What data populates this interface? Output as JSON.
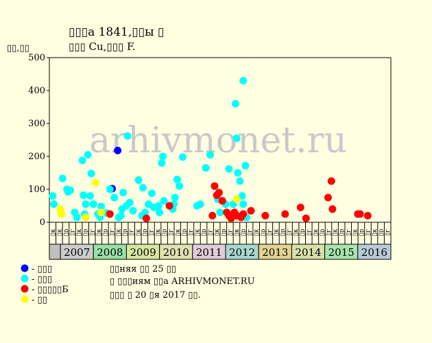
{
  "title": "▯▯▯а 1841,▯▯ы ▯",
  "subtitle": "▯▯▯ Cu,▯▯▯ F.",
  "y_unit": "▯▯,▯▯",
  "watermark": "arhivmonet.ru",
  "legend": [
    {
      "label": "- ▯▯▯",
      "color": "#0000ff"
    },
    {
      "label": "- ▯▯▯",
      "color": "#00ffff"
    },
    {
      "label": "- ▯▯▯▯▯Б",
      "color": "#ff0000"
    },
    {
      "label": "- ▯▯",
      "color": "#ffff00"
    }
  ],
  "notes": [
    "▯▯няя ▯▯ 25 ▯▯",
    "▯ ▯▯▯иям ▯▯а ARHIVMONET.RU",
    "▯▯▯ ▯ 20 ▯я 2017 ▯▯."
  ],
  "chart_data": {
    "type": "scatter",
    "ylim": [
      0,
      500
    ],
    "yticks": [
      "0",
      "100",
      "200",
      "300",
      "400",
      "500"
    ],
    "grid": false,
    "month_labels": [
      "▯к",
      "▯к",
      "▯р",
      "▯г",
      "▯к",
      "▯р",
      "▯г",
      "▯к",
      "▯р",
      "▯г",
      "▯к",
      "▯р",
      "▯г",
      "▯к",
      "▯р",
      "▯г",
      "▯к",
      "▯р",
      "▯г",
      "▯к",
      "▯р",
      "▯г",
      "▯к",
      "▯р",
      "▯г",
      "▯к",
      "▯р",
      "▯г",
      "▯к",
      "▯р",
      "▯г",
      "▯к",
      "▯р",
      "▯г",
      "▯к",
      "▯р",
      "▯г",
      "▯к",
      "▯р",
      "▯г",
      "▯к",
      "▯р",
      "▯г",
      "▯к",
      "▯р",
      "▯г",
      "▯к",
      "▯р",
      "▯г",
      "▯к",
      "▯р",
      "▯г"
    ],
    "years": [
      {
        "label": "",
        "start": 0,
        "end": 1,
        "color": "#c0c0c0"
      },
      {
        "label": "2007",
        "start": 1,
        "end": 4,
        "color": "#cccccc"
      },
      {
        "label": "2008",
        "start": 4,
        "end": 7,
        "color": "#99e0a8"
      },
      {
        "label": "2009",
        "start": 7,
        "end": 10,
        "color": "#d8e6a0"
      },
      {
        "label": "2010",
        "start": 10,
        "end": 13,
        "color": "#e0e2b0"
      },
      {
        "label": "2011",
        "start": 13,
        "end": 16,
        "color": "#e0cbd8"
      },
      {
        "label": "2012",
        "start": 16,
        "end": 19,
        "color": "#a8d8d0"
      },
      {
        "label": "2013",
        "start": 19,
        "end": 22,
        "color": "#e0d490"
      },
      {
        "label": "2014",
        "start": 22,
        "end": 25,
        "color": "#d8e0a8"
      },
      {
        "label": "2015",
        "start": 25,
        "end": 28,
        "color": "#a8e4b0"
      },
      {
        "label": "2016",
        "start": 28,
        "end": 31,
        "color": "#b8ccd8"
      }
    ],
    "series": [
      {
        "name": "- ▯▯▯",
        "color": "#0000ff",
        "points": [
          [
            5.7,
            102
          ],
          [
            6.2,
            218
          ]
        ]
      },
      {
        "name": "- ▯▯▯",
        "color": "#00ffff",
        "points": [
          [
            0.3,
            80
          ],
          [
            0.4,
            55
          ],
          [
            1.2,
            133
          ],
          [
            1.6,
            100
          ],
          [
            1.7,
            92
          ],
          [
            1.9,
            97
          ],
          [
            2.3,
            30
          ],
          [
            2.5,
            15
          ],
          [
            3.0,
            188
          ],
          [
            3.1,
            82
          ],
          [
            3.2,
            25
          ],
          [
            3.3,
            55
          ],
          [
            3.5,
            205
          ],
          [
            3.7,
            80
          ],
          [
            3.8,
            148
          ],
          [
            4.0,
            55
          ],
          [
            4.4,
            25
          ],
          [
            4.6,
            15
          ],
          [
            4.7,
            48
          ],
          [
            5.2,
            28
          ],
          [
            5.5,
            100
          ],
          [
            5.9,
            75
          ],
          [
            6.3,
            15
          ],
          [
            6.5,
            20
          ],
          [
            6.6,
            40
          ],
          [
            6.7,
            90
          ],
          [
            7.0,
            50
          ],
          [
            7.1,
            262
          ],
          [
            7.3,
            60
          ],
          [
            7.6,
            35
          ],
          [
            8.1,
            128
          ],
          [
            8.4,
            20
          ],
          [
            8.5,
            105
          ],
          [
            8.7,
            30
          ],
          [
            9.0,
            55
          ],
          [
            9.3,
            88
          ],
          [
            9.5,
            45
          ],
          [
            9.9,
            50
          ],
          [
            10.0,
            30
          ],
          [
            10.2,
            180
          ],
          [
            10.3,
            200
          ],
          [
            10.4,
            65
          ],
          [
            11.2,
            40
          ],
          [
            11.3,
            55
          ],
          [
            11.4,
            75
          ],
          [
            11.6,
            130
          ],
          [
            11.8,
            110
          ],
          [
            12.1,
            198
          ],
          [
            13.4,
            50
          ],
          [
            13.7,
            55
          ],
          [
            14.2,
            165
          ],
          [
            14.6,
            205
          ],
          [
            15.3,
            70
          ],
          [
            15.5,
            30
          ],
          [
            16.0,
            55
          ],
          [
            16.3,
            162
          ],
          [
            16.7,
            55
          ],
          [
            16.9,
            360
          ],
          [
            17.0,
            255
          ],
          [
            17.1,
            150
          ],
          [
            17.3,
            125
          ],
          [
            17.5,
            80
          ],
          [
            17.6,
            430
          ],
          [
            17.6,
            55
          ],
          [
            17.8,
            172
          ],
          [
            17.9,
            15
          ]
        ]
      },
      {
        "name": "- ▯▯▯▯▯Б",
        "color": "#ff0000",
        "points": [
          [
            5.5,
            25
          ],
          [
            8.8,
            12
          ],
          [
            10.9,
            50
          ],
          [
            14.8,
            20
          ],
          [
            15.0,
            110
          ],
          [
            15.2,
            82
          ],
          [
            15.4,
            90
          ],
          [
            15.7,
            65
          ],
          [
            16.1,
            30
          ],
          [
            16.3,
            20
          ],
          [
            16.5,
            12
          ],
          [
            16.8,
            30
          ],
          [
            17.0,
            20
          ],
          [
            17.4,
            15
          ],
          [
            17.6,
            25
          ],
          [
            18.3,
            35
          ],
          [
            19.6,
            20
          ],
          [
            21.4,
            25
          ],
          [
            22.8,
            45
          ],
          [
            23.3,
            12
          ],
          [
            25.3,
            75
          ],
          [
            25.6,
            125
          ],
          [
            25.7,
            40
          ],
          [
            28.0,
            25
          ],
          [
            28.2,
            25
          ],
          [
            28.9,
            20
          ]
        ]
      },
      {
        "name": "- ▯▯",
        "color": "#ffff00",
        "points": [
          [
            1.0,
            40
          ],
          [
            1.1,
            25
          ],
          [
            3.3,
            15
          ],
          [
            4.2,
            120
          ],
          [
            4.7,
            30
          ],
          [
            17.0,
            70
          ]
        ]
      }
    ]
  }
}
